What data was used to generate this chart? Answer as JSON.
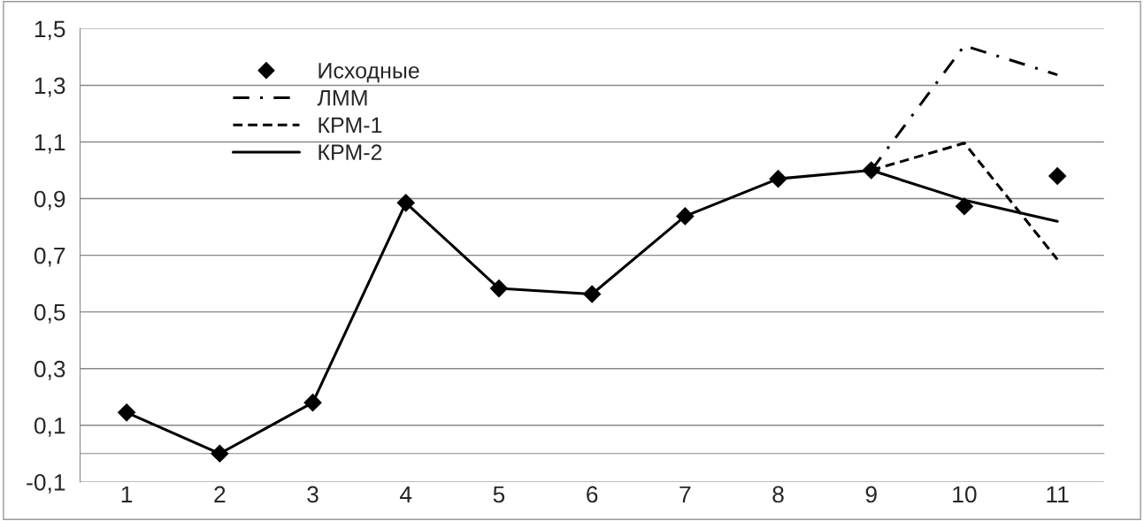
{
  "chart_data": {
    "type": "line",
    "categories": [
      "1",
      "2",
      "3",
      "4",
      "5",
      "6",
      "7",
      "8",
      "9",
      "10",
      "11"
    ],
    "series": [
      {
        "name": "Исходные",
        "type": "scatter",
        "marker": "diamond",
        "color": "#000000",
        "values": [
          0.145,
          0.0,
          0.18,
          0.885,
          0.583,
          0.563,
          0.838,
          0.97,
          1.0,
          0.873,
          0.98
        ]
      },
      {
        "name": "ЛММ",
        "line_style": "dashdot",
        "marker": "none",
        "color": "#000000",
        "values": [
          null,
          null,
          null,
          null,
          null,
          null,
          null,
          null,
          1.0,
          1.44,
          1.337
        ]
      },
      {
        "name": "КРМ-1",
        "line_style": "dashed",
        "marker": "none",
        "color": "#000000",
        "values": [
          null,
          null,
          null,
          null,
          null,
          null,
          null,
          null,
          1.0,
          1.096,
          0.685
        ]
      },
      {
        "name": "КРМ-2",
        "line_style": "solid",
        "marker": "none",
        "color": "#000000",
        "values": [
          0.145,
          0.0,
          0.18,
          0.885,
          0.583,
          0.563,
          0.838,
          0.97,
          1.0,
          0.895,
          0.82
        ]
      }
    ],
    "ylim": [
      -0.1,
      1.5
    ],
    "yticks": [
      {
        "value": -0.1,
        "label": "-0,1"
      },
      {
        "value": 0.1,
        "label": "0,1"
      },
      {
        "value": 0.3,
        "label": "0,3"
      },
      {
        "value": 0.5,
        "label": "0,5"
      },
      {
        "value": 0.7,
        "label": "0,7"
      },
      {
        "value": 0.9,
        "label": "0,9"
      },
      {
        "value": 1.1,
        "label": "1,1"
      },
      {
        "value": 1.3,
        "label": "1,3"
      },
      {
        "value": 1.5,
        "label": "1,5"
      }
    ],
    "grid": "y",
    "legend": "top left"
  }
}
